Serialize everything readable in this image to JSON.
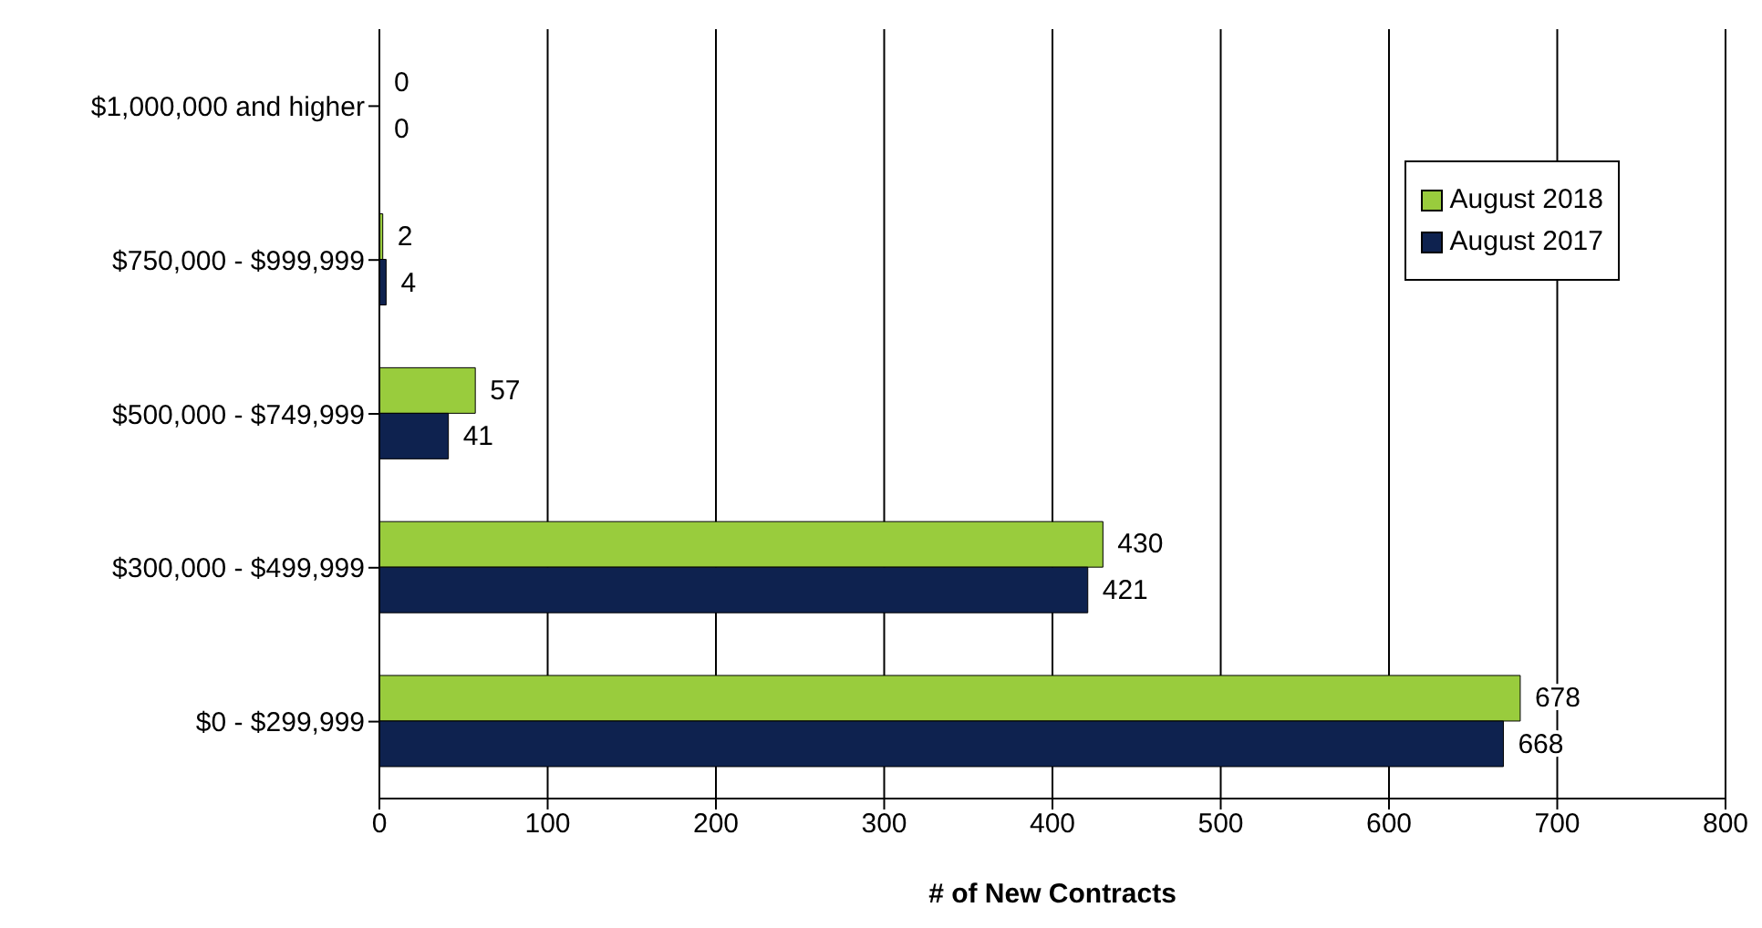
{
  "chart_data": {
    "type": "bar",
    "orientation": "horizontal",
    "xlabel": "# of New Contracts",
    "categories": [
      "$1,000,000 and higher",
      "$750,000 - $999,999",
      "$500,000 - $749,999",
      "$300,000 - $499,999",
      "$0 - $299,999"
    ],
    "series": [
      {
        "name": "August 2018",
        "color": "#99cc3d",
        "values": [
          0,
          2,
          57,
          430,
          678
        ]
      },
      {
        "name": "August 2017",
        "color": "#0e224f",
        "values": [
          0,
          4,
          41,
          421,
          668
        ]
      }
    ],
    "xlim": [
      0,
      800
    ],
    "xticks": [
      0,
      100,
      200,
      300,
      400,
      500,
      600,
      700,
      800
    ],
    "grid": "x",
    "legend": "top right",
    "data_labels": true
  }
}
